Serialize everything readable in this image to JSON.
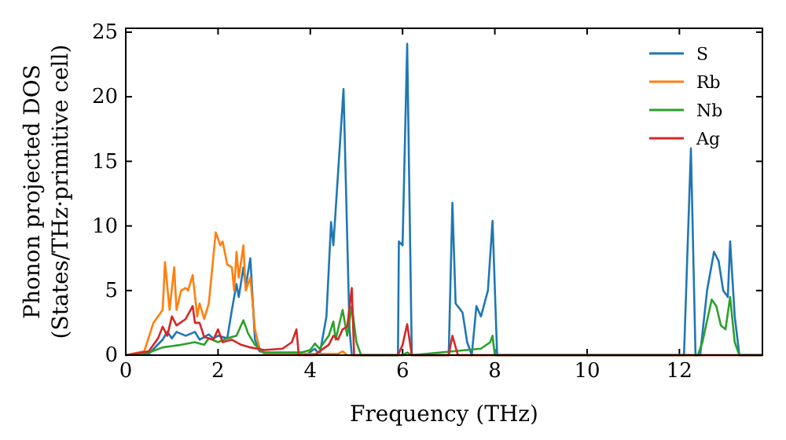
{
  "chart_data": {
    "type": "line",
    "xlabel": "Frequency (THz)",
    "ylabel": "Phonon projected DOS\n(States/THz·primitive cell)",
    "xlim": [
      0,
      13.8
    ],
    "ylim": [
      0,
      25.3
    ],
    "xticks": [
      0,
      2,
      4,
      6,
      8,
      10,
      12
    ],
    "yticks": [
      0,
      5,
      10,
      15,
      20,
      25
    ],
    "legend": "top right",
    "grid": false,
    "series": [
      {
        "name": "S",
        "color": "#1f77b4",
        "x": [
          0,
          0.5,
          0.8,
          0.9,
          1.0,
          1.1,
          1.3,
          1.5,
          1.6,
          1.8,
          1.9,
          2.0,
          2.2,
          2.3,
          2.4,
          2.45,
          2.55,
          2.6,
          2.7,
          2.8,
          2.9,
          3.0,
          3.8,
          3.9,
          4.1,
          4.2,
          4.35,
          4.45,
          4.5,
          4.6,
          4.72,
          4.85,
          4.9,
          5.9,
          5.92,
          6.0,
          6.1,
          6.2,
          7.0,
          7.08,
          7.15,
          7.3,
          7.4,
          7.5,
          7.6,
          7.7,
          7.85,
          7.95,
          8.05,
          12.1,
          12.25,
          12.35,
          12.45,
          12.6,
          12.75,
          12.85,
          12.95,
          13.05,
          13.1,
          13.2,
          13.3,
          13.8
        ],
        "values": [
          0,
          0.1,
          1.2,
          1.8,
          1.3,
          1.8,
          1.5,
          1.8,
          1.2,
          1.6,
          1.3,
          1.5,
          1.3,
          3.5,
          5.5,
          4.5,
          6.8,
          5.3,
          7.5,
          1.2,
          0.3,
          0.2,
          0.2,
          0,
          0.5,
          0,
          3,
          10.3,
          8.5,
          14,
          20.6,
          2,
          0,
          0,
          8.8,
          8.5,
          24.1,
          0,
          0,
          11.8,
          4,
          3.3,
          1,
          0,
          3.8,
          3,
          5,
          10.4,
          0,
          0,
          16,
          0,
          0,
          5,
          8,
          7.3,
          5,
          4.5,
          8.8,
          3,
          0,
          0
        ]
      },
      {
        "name": "Rb",
        "color": "#ff7f0e",
        "x": [
          0,
          0.4,
          0.6,
          0.7,
          0.8,
          0.85,
          0.95,
          1.05,
          1.1,
          1.2,
          1.3,
          1.35,
          1.45,
          1.55,
          1.6,
          1.7,
          1.8,
          1.95,
          2.05,
          2.1,
          2.2,
          2.3,
          2.35,
          2.4,
          2.45,
          2.55,
          2.6,
          2.7,
          2.8,
          2.9,
          3.0,
          4.2,
          4.6,
          4.7,
          4.8,
          13.8
        ],
        "values": [
          0,
          0.3,
          2.5,
          3,
          3.5,
          7.2,
          3.5,
          6.8,
          3.5,
          5,
          5.2,
          5,
          6.2,
          3,
          4,
          2.8,
          4,
          9.5,
          8.5,
          8.8,
          7,
          6.8,
          5,
          8,
          6,
          8.5,
          5,
          6,
          2,
          0.5,
          0.1,
          0.1,
          0.1,
          0.3,
          0,
          0
        ]
      },
      {
        "name": "Nb",
        "color": "#2ca02c",
        "x": [
          0,
          0.5,
          0.8,
          1.0,
          1.2,
          1.5,
          1.7,
          1.8,
          2.0,
          2.2,
          2.4,
          2.55,
          2.65,
          2.8,
          3.0,
          3.8,
          4.0,
          4.1,
          4.2,
          4.4,
          4.5,
          4.55,
          4.7,
          4.8,
          4.9,
          5.0,
          5.1,
          6.0,
          6.1,
          6.2,
          7.7,
          7.9,
          7.95,
          8.0,
          12.4,
          12.5,
          12.7,
          12.8,
          12.9,
          13.0,
          13.1,
          13.2,
          13.3,
          13.8
        ],
        "values": [
          0,
          0.2,
          0.6,
          0.7,
          0.8,
          1.0,
          0.8,
          1.3,
          1.0,
          1.3,
          1.5,
          2.7,
          1.7,
          0.8,
          0.2,
          0.2,
          0.4,
          0.9,
          0.5,
          1.5,
          2.6,
          1.2,
          3.5,
          1.5,
          3.8,
          1,
          0,
          0,
          0.2,
          0,
          0.5,
          1.0,
          1.5,
          0,
          0,
          1,
          4.3,
          3.8,
          2.3,
          2,
          4.5,
          1,
          0,
          0
        ]
      },
      {
        "name": "Ag",
        "color": "#d62728",
        "x": [
          0,
          0.5,
          0.7,
          0.8,
          0.9,
          1.0,
          1.1,
          1.3,
          1.45,
          1.5,
          1.6,
          1.7,
          1.9,
          2.0,
          2.1,
          2.3,
          2.5,
          2.7,
          3.0,
          3.4,
          3.6,
          3.7,
          3.75,
          4.1,
          4.2,
          4.4,
          4.5,
          4.6,
          4.7,
          4.8,
          4.9,
          4.95,
          5.9,
          6.0,
          6.1,
          6.2,
          7.0,
          7.08,
          7.2,
          13.8
        ],
        "values": [
          0,
          0.3,
          1.3,
          2.2,
          1.5,
          3,
          2.3,
          2.8,
          3.8,
          2.5,
          2.5,
          1.4,
          1.2,
          2.0,
          1.0,
          1.2,
          0.8,
          0.6,
          0.4,
          0.5,
          1.0,
          2.0,
          0,
          0,
          0.3,
          0.8,
          1.5,
          1.2,
          2,
          2.2,
          5.2,
          0,
          0,
          0.8,
          2.4,
          0,
          0,
          1.5,
          0,
          0
        ]
      }
    ]
  }
}
